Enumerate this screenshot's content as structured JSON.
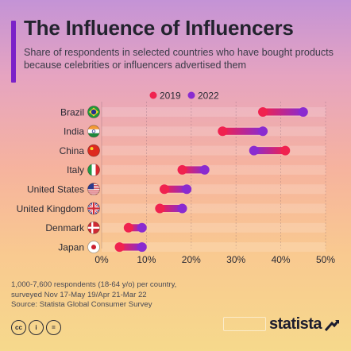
{
  "header": {
    "title": "The Influence of Influencers",
    "subtitle": "Share of respondents in selected countries who have bought products because celebrities or influencers advertised them"
  },
  "colors": {
    "accent": "#7b22c8",
    "series_2019": "#f0224f",
    "series_2022": "#8a2bd0"
  },
  "chart_data": {
    "type": "dumbbell",
    "categories": [
      "Brazil",
      "India",
      "China",
      "Italy",
      "United States",
      "United Kingdom",
      "Denmark",
      "Japan"
    ],
    "flags": [
      "brazil-flag-icon",
      "india-flag-icon",
      "china-flag-icon",
      "italy-flag-icon",
      "us-flag-icon",
      "uk-flag-icon",
      "denmark-flag-icon",
      "japan-flag-icon"
    ],
    "series": [
      {
        "name": "2019",
        "values": [
          36,
          27,
          41,
          18,
          14,
          13,
          6,
          4
        ]
      },
      {
        "name": "2022",
        "values": [
          45,
          36,
          34,
          23,
          19,
          18,
          9,
          9
        ]
      }
    ],
    "xlim": [
      0,
      50
    ],
    "xticks": [
      "0%",
      "10%",
      "20%",
      "30%",
      "40%",
      "50%"
    ],
    "xtick_values": [
      0,
      10,
      20,
      30,
      40,
      50
    ],
    "legend_position": "top"
  },
  "footer": {
    "note_line1": "1,000-7,600 respondents (18-64 y/o) per country,",
    "note_line2": "surveyed Nov 17-May 19/Apr 21-Mar 22",
    "source": "Source: Statista Global Consumer Survey",
    "license_icons": [
      "cc",
      "i",
      "="
    ],
    "brand": "statista"
  }
}
